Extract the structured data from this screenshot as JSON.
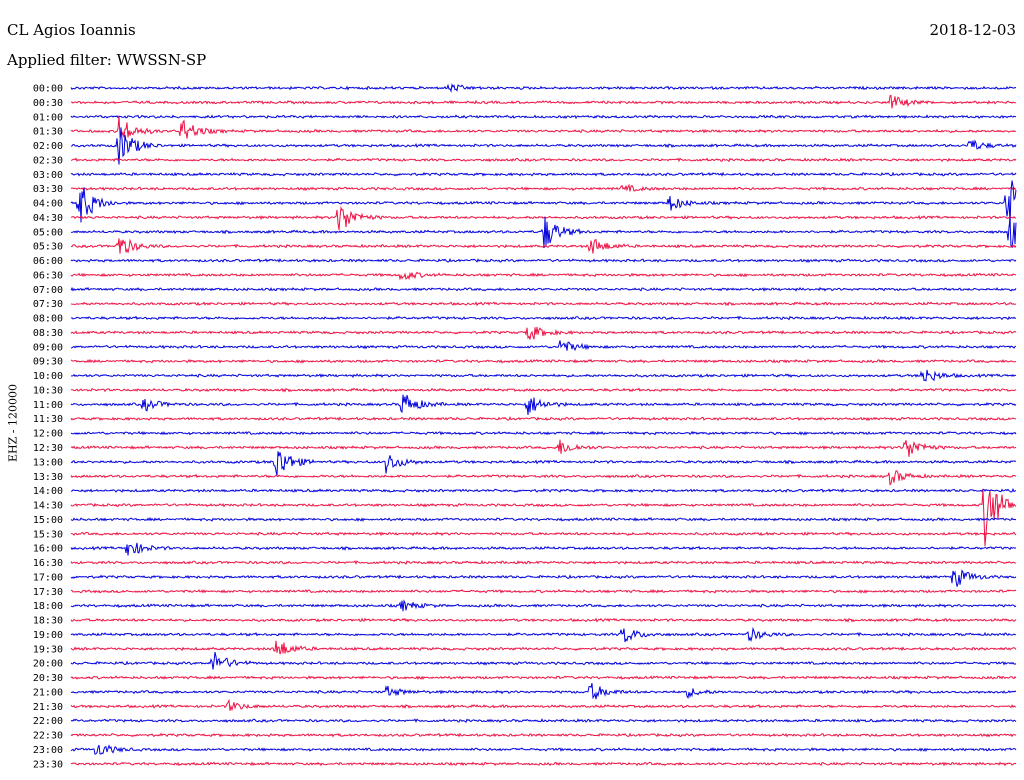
{
  "header": {
    "station": "CL Agios Ioannis",
    "date": "2018-12-03",
    "filter": "Applied filter: WWSSN-SP",
    "channel": "EHZ - 120000"
  },
  "colors": {
    "trace_a": "#0000dd",
    "trace_b": "#ee1144",
    "text": "#000000"
  },
  "chart_data": {
    "type": "helicorder",
    "title": "CL Agios Ioannis",
    "date": "2018-12-03",
    "filter": "WWSSN-SP",
    "ylabel": "EHZ - 120000",
    "tick_labels": [
      "00:00",
      "00:30",
      "01:00",
      "01:30",
      "02:00",
      "02:30",
      "03:00",
      "03:30",
      "04:00",
      "04:30",
      "05:00",
      "05:30",
      "06:00",
      "06:30",
      "07:00",
      "07:30",
      "08:00",
      "08:30",
      "09:00",
      "09:30",
      "10:00",
      "10:30",
      "11:00",
      "11:30",
      "12:00",
      "12:30",
      "13:00",
      "13:30",
      "14:00",
      "14:30",
      "15:00",
      "15:30",
      "16:00",
      "16:30",
      "17:00",
      "17:30",
      "18:00",
      "18:30",
      "19:00",
      "19:30",
      "20:00",
      "20:30",
      "21:00",
      "21:30",
      "22:00",
      "22:30",
      "23:00",
      "23:30"
    ],
    "line_minutes": 30,
    "color_order": [
      "blue",
      "red"
    ],
    "events": [
      {
        "row": 0,
        "minute": 12.0,
        "amp": 0.3
      },
      {
        "row": 1,
        "minute": 26.0,
        "amp": 0.6
      },
      {
        "row": 3,
        "minute": 1.5,
        "amp": 1.2
      },
      {
        "row": 3,
        "minute": 3.5,
        "amp": 1.0
      },
      {
        "row": 4,
        "minute": 1.5,
        "amp": 1.6
      },
      {
        "row": 4,
        "minute": 28.5,
        "amp": 0.5
      },
      {
        "row": 7,
        "minute": 17.5,
        "amp": 0.3
      },
      {
        "row": 8,
        "minute": 0.2,
        "amp": 2.0
      },
      {
        "row": 8,
        "minute": 19.0,
        "amp": 0.6
      },
      {
        "row": 8,
        "minute": 29.7,
        "amp": 2.5
      },
      {
        "row": 9,
        "minute": 8.5,
        "amp": 1.3
      },
      {
        "row": 10,
        "minute": 15.0,
        "amp": 1.4
      },
      {
        "row": 10,
        "minute": 29.8,
        "amp": 1.4
      },
      {
        "row": 11,
        "minute": 1.5,
        "amp": 0.9
      },
      {
        "row": 11,
        "minute": 16.5,
        "amp": 0.7
      },
      {
        "row": 13,
        "minute": 10.5,
        "amp": 0.4
      },
      {
        "row": 17,
        "minute": 14.5,
        "amp": 0.7
      },
      {
        "row": 18,
        "minute": 15.5,
        "amp": 0.6
      },
      {
        "row": 20,
        "minute": 27.0,
        "amp": 0.7
      },
      {
        "row": 22,
        "minute": 2.3,
        "amp": 0.5
      },
      {
        "row": 22,
        "minute": 10.5,
        "amp": 1.0
      },
      {
        "row": 22,
        "minute": 14.5,
        "amp": 0.8
      },
      {
        "row": 25,
        "minute": 15.5,
        "amp": 0.6
      },
      {
        "row": 25,
        "minute": 26.5,
        "amp": 0.9
      },
      {
        "row": 26,
        "minute": 6.5,
        "amp": 1.4
      },
      {
        "row": 26,
        "minute": 10.0,
        "amp": 0.8
      },
      {
        "row": 27,
        "minute": 26.0,
        "amp": 0.6
      },
      {
        "row": 29,
        "minute": 29.0,
        "amp": 3.0
      },
      {
        "row": 32,
        "minute": 1.8,
        "amp": 0.7
      },
      {
        "row": 34,
        "minute": 28.0,
        "amp": 0.9
      },
      {
        "row": 36,
        "minute": 10.5,
        "amp": 0.4
      },
      {
        "row": 38,
        "minute": 17.5,
        "amp": 0.7
      },
      {
        "row": 38,
        "minute": 21.5,
        "amp": 0.5
      },
      {
        "row": 39,
        "minute": 6.5,
        "amp": 0.8
      },
      {
        "row": 40,
        "minute": 4.5,
        "amp": 0.9
      },
      {
        "row": 42,
        "minute": 10.0,
        "amp": 0.4
      },
      {
        "row": 42,
        "minute": 16.5,
        "amp": 0.7
      },
      {
        "row": 42,
        "minute": 19.5,
        "amp": 0.4
      },
      {
        "row": 43,
        "minute": 5.0,
        "amp": 0.4
      },
      {
        "row": 46,
        "minute": 0.8,
        "amp": 0.6
      }
    ]
  }
}
